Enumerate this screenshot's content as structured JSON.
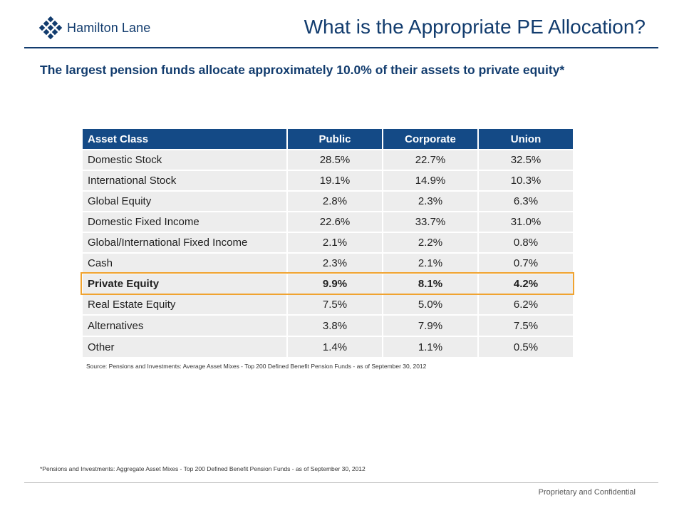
{
  "header": {
    "logo_text": "Hamilton Lane",
    "title": "What is the Appropriate PE Allocation?"
  },
  "subtitle": "The largest pension funds allocate approximately 10.0% of their assets to private equity*",
  "table": {
    "columns": [
      "Asset Class",
      "Public",
      "Corporate",
      "Union"
    ],
    "rows": [
      {
        "label": "Domestic Stock",
        "public": "28.5%",
        "corporate": "22.7%",
        "union": "32.5%"
      },
      {
        "label": "International Stock",
        "public": "19.1%",
        "corporate": "14.9%",
        "union": "10.3%"
      },
      {
        "label": "Global Equity",
        "public": "2.8%",
        "corporate": "2.3%",
        "union": "6.3%"
      },
      {
        "label": "Domestic Fixed Income",
        "public": "22.6%",
        "corporate": "33.7%",
        "union": "31.0%"
      },
      {
        "label": "Global/International Fixed Income",
        "public": "2.1%",
        "corporate": "2.2%",
        "union": "0.8%"
      },
      {
        "label": "Cash",
        "public": "2.3%",
        "corporate": "2.1%",
        "union": "0.7%"
      },
      {
        "label": "Private Equity",
        "public": "9.9%",
        "corporate": "8.1%",
        "union": "4.2%"
      },
      {
        "label": "Real Estate Equity",
        "public": "7.5%",
        "corporate": "5.0%",
        "union": "6.2%"
      },
      {
        "label": "Alternatives",
        "public": "3.8%",
        "corporate": "7.9%",
        "union": "7.5%"
      },
      {
        "label": "Other",
        "public": "1.4%",
        "corporate": "1.1%",
        "union": "0.5%"
      }
    ],
    "highlight_color": "#f0a330",
    "header_color": "#144a86"
  },
  "source": "Source: Pensions and Investments: Average Asset Mixes - Top 200 Defined Benefit Pension Funds - as of September 30, 2012",
  "footnote": "*Pensions and Investments: Aggregate Asset Mixes - Top 200 Defined Benefit Pension Funds - as of September 30, 2012",
  "footer": {
    "confidential": "Proprietary and Confidential"
  }
}
